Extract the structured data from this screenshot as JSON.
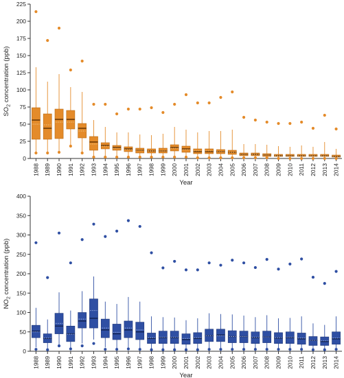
{
  "chart_data": [
    {
      "type": "box",
      "title": "",
      "xlabel": "Year",
      "ylabel_main": "SO",
      "ylabel_sub": "2",
      "ylabel_rest": " concentration (ppb)",
      "ylim": [
        0,
        225
      ],
      "yticks": [
        0,
        25,
        50,
        75,
        100,
        125,
        150,
        175,
        200,
        225
      ],
      "box_color": "#e48b2a",
      "box_edge": "#b86a14",
      "median_color": "#5a2d00",
      "mean_color": "#f2c88a",
      "categories": [
        "1988",
        "1989",
        "1990",
        "1991",
        "1992",
        "1993",
        "1994",
        "1995",
        "1996",
        "1997",
        "1998",
        "1999",
        "2000",
        "2001",
        "2002",
        "2003",
        "2004",
        "2005",
        "2006",
        "2007",
        "2008",
        "2009",
        "2010",
        "2011",
        "2012",
        "2013",
        "2014"
      ],
      "boxes": [
        {
          "q1": 28,
          "median": 56,
          "mean": 50,
          "q3": 74,
          "whisker_low": 9,
          "whisker_high": 133,
          "outliers": [
            8,
            214
          ]
        },
        {
          "q1": 28,
          "median": 44,
          "mean": 49,
          "q3": 65,
          "whisker_low": 9,
          "whisker_high": 112,
          "outliers": [
            8,
            172
          ]
        },
        {
          "q1": 29,
          "median": 57,
          "mean": 53,
          "q3": 72,
          "whisker_low": 10,
          "whisker_high": 123,
          "outliers": [
            9,
            190
          ]
        },
        {
          "q1": 43,
          "median": 57,
          "mean": 53,
          "q3": 70,
          "whisker_low": 20,
          "whisker_high": 104,
          "outliers": [
            18,
            129
          ]
        },
        {
          "q1": 30,
          "median": 44,
          "mean": 40,
          "q3": 51,
          "whisker_low": 10,
          "whisker_high": 97,
          "outliers": [
            8,
            142
          ]
        },
        {
          "q1": 12,
          "median": 24,
          "mean": 21,
          "q3": 32,
          "whisker_low": 3,
          "whisker_high": 56,
          "outliers": [
            2,
            79
          ]
        },
        {
          "q1": 14,
          "median": 19,
          "mean": 18,
          "q3": 23,
          "whisker_low": 4,
          "whisker_high": 46,
          "outliers": [
            2,
            79
          ]
        },
        {
          "q1": 12,
          "median": 16,
          "mean": 15,
          "q3": 19,
          "whisker_low": 4,
          "whisker_high": 38,
          "outliers": [
            2,
            65
          ]
        },
        {
          "q1": 10,
          "median": 14,
          "mean": 13,
          "q3": 17,
          "whisker_low": 3,
          "whisker_high": 38,
          "outliers": [
            2,
            72
          ]
        },
        {
          "q1": 8,
          "median": 12,
          "mean": 12,
          "q3": 15,
          "whisker_low": 3,
          "whisker_high": 35,
          "outliers": [
            2,
            72
          ]
        },
        {
          "q1": 8,
          "median": 11,
          "mean": 11,
          "q3": 14,
          "whisker_low": 3,
          "whisker_high": 34,
          "outliers": [
            2,
            74
          ]
        },
        {
          "q1": 8,
          "median": 11,
          "mean": 11,
          "q3": 15,
          "whisker_low": 3,
          "whisker_high": 36,
          "outliers": [
            2,
            67
          ]
        },
        {
          "q1": 11,
          "median": 16,
          "mean": 15,
          "q3": 20,
          "whisker_low": 3,
          "whisker_high": 46,
          "outliers": [
            2,
            79
          ]
        },
        {
          "q1": 9,
          "median": 14,
          "mean": 13,
          "q3": 18,
          "whisker_low": 3,
          "whisker_high": 42,
          "outliers": [
            2,
            93
          ]
        },
        {
          "q1": 7,
          "median": 10,
          "mean": 11,
          "q3": 14,
          "whisker_low": 2,
          "whisker_high": 38,
          "outliers": [
            1,
            81
          ]
        },
        {
          "q1": 7,
          "median": 10,
          "mean": 11,
          "q3": 14,
          "whisker_low": 2,
          "whisker_high": 40,
          "outliers": [
            1,
            81
          ]
        },
        {
          "q1": 7,
          "median": 10,
          "mean": 10,
          "q3": 13,
          "whisker_low": 2,
          "whisker_high": 40,
          "outliers": [
            1,
            89
          ]
        },
        {
          "q1": 6,
          "median": 9,
          "mean": 9,
          "q3": 12,
          "whisker_low": 2,
          "whisker_high": 42,
          "outliers": [
            1,
            97
          ]
        },
        {
          "q1": 4,
          "median": 6,
          "mean": 6,
          "q3": 8,
          "whisker_low": 1,
          "whisker_high": 21,
          "outliers": [
            1,
            60
          ]
        },
        {
          "q1": 4,
          "median": 6,
          "mean": 6,
          "q3": 8,
          "whisker_low": 1,
          "whisker_high": 21,
          "outliers": [
            1,
            56
          ]
        },
        {
          "q1": 3,
          "median": 5,
          "mean": 5,
          "q3": 7,
          "whisker_low": 1,
          "whisker_high": 20,
          "outliers": [
            1,
            53
          ]
        },
        {
          "q1": 3,
          "median": 4,
          "mean": 4,
          "q3": 6,
          "whisker_low": 1,
          "whisker_high": 18,
          "outliers": [
            0,
            51
          ]
        },
        {
          "q1": 3,
          "median": 4,
          "mean": 4,
          "q3": 6,
          "whisker_low": 1,
          "whisker_high": 17,
          "outliers": [
            0,
            51
          ]
        },
        {
          "q1": 3,
          "median": 4,
          "mean": 4,
          "q3": 6,
          "whisker_low": 1,
          "whisker_high": 19,
          "outliers": [
            0,
            53
          ]
        },
        {
          "q1": 3,
          "median": 4,
          "mean": 4,
          "q3": 6,
          "whisker_low": 1,
          "whisker_high": 17,
          "outliers": [
            0,
            44
          ]
        },
        {
          "q1": 3,
          "median": 4,
          "mean": 4,
          "q3": 6,
          "whisker_low": 1,
          "whisker_high": 24,
          "outliers": [
            0,
            63
          ]
        },
        {
          "q1": 2,
          "median": 3,
          "mean": 3,
          "q3": 5,
          "whisker_low": 1,
          "whisker_high": 14,
          "outliers": [
            0,
            43
          ]
        }
      ]
    },
    {
      "type": "box",
      "title": "",
      "xlabel": "Year",
      "ylabel_main": "NO",
      "ylabel_sub": "2",
      "ylabel_rest": " concentration (ppb)",
      "ylim": [
        0,
        400
      ],
      "yticks": [
        0,
        50,
        100,
        150,
        200,
        250,
        300,
        350,
        400
      ],
      "box_color": "#2f4fa3",
      "box_edge": "#1c3578",
      "median_color": "#0f1f4d",
      "mean_color": "#9fb3e6",
      "categories": [
        "1988",
        "1989",
        "1990",
        "1991",
        "1992",
        "1993",
        "1994",
        "1995",
        "1996",
        "1997",
        "1998",
        "1999",
        "2000",
        "2001",
        "2002",
        "2003",
        "2004",
        "2005",
        "2006",
        "2007",
        "2008",
        "2009",
        "2010",
        "2011",
        "2012",
        "2013",
        "2014"
      ],
      "boxes": [
        {
          "q1": 35,
          "median": 52,
          "mean": 50,
          "q3": 67,
          "whisker_low": 10,
          "whisker_high": 112,
          "outliers": [
            5,
            280
          ]
        },
        {
          "q1": 22,
          "median": 33,
          "mean": 34,
          "q3": 45,
          "whisker_low": 8,
          "whisker_high": 82,
          "outliers": [
            4,
            190
          ]
        },
        {
          "q1": 45,
          "median": 65,
          "mean": 72,
          "q3": 98,
          "whisker_low": 15,
          "whisker_high": 152,
          "outliers": [
            14,
            305
          ]
        },
        {
          "q1": 25,
          "median": 45,
          "mean": 44,
          "q3": 65,
          "whisker_low": 8,
          "whisker_high": 105,
          "outliers": [
            6,
            228
          ]
        },
        {
          "q1": 60,
          "median": 78,
          "mean": 83,
          "q3": 100,
          "whisker_low": 20,
          "whisker_high": 155,
          "outliers": [
            14,
            288
          ]
        },
        {
          "q1": 60,
          "median": 85,
          "mean": 105,
          "q3": 135,
          "whisker_low": 30,
          "whisker_high": 193,
          "outliers": [
            20,
            328
          ]
        },
        {
          "q1": 35,
          "median": 55,
          "mean": 60,
          "q3": 83,
          "whisker_low": 10,
          "whisker_high": 128,
          "outliers": [
            5,
            296
          ]
        },
        {
          "q1": 30,
          "median": 45,
          "mean": 49,
          "q3": 70,
          "whisker_low": 8,
          "whisker_high": 122,
          "outliers": [
            5,
            310
          ]
        },
        {
          "q1": 35,
          "median": 55,
          "mean": 60,
          "q3": 78,
          "whisker_low": 8,
          "whisker_high": 140,
          "outliers": [
            6,
            337
          ]
        },
        {
          "q1": 30,
          "median": 50,
          "mean": 55,
          "q3": 75,
          "whisker_low": 8,
          "whisker_high": 128,
          "outliers": [
            5,
            322
          ]
        },
        {
          "q1": 20,
          "median": 33,
          "mean": 35,
          "q3": 47,
          "whisker_low": 5,
          "whisker_high": 90,
          "outliers": [
            4,
            254
          ]
        },
        {
          "q1": 20,
          "median": 35,
          "mean": 36,
          "q3": 52,
          "whisker_low": 5,
          "whisker_high": 88,
          "outliers": [
            4,
            215
          ]
        },
        {
          "q1": 20,
          "median": 35,
          "mean": 36,
          "q3": 52,
          "whisker_low": 5,
          "whisker_high": 87,
          "outliers": [
            4,
            232
          ]
        },
        {
          "q1": 18,
          "median": 30,
          "mean": 33,
          "q3": 45,
          "whisker_low": 5,
          "whisker_high": 80,
          "outliers": [
            4,
            210
          ]
        },
        {
          "q1": 20,
          "median": 33,
          "mean": 35,
          "q3": 48,
          "whisker_low": 5,
          "whisker_high": 85,
          "outliers": [
            4,
            210
          ]
        },
        {
          "q1": 25,
          "median": 40,
          "mean": 40,
          "q3": 57,
          "whisker_low": 6,
          "whisker_high": 98,
          "outliers": [
            5,
            228
          ]
        },
        {
          "q1": 25,
          "median": 42,
          "mean": 40,
          "q3": 57,
          "whisker_low": 6,
          "whisker_high": 96,
          "outliers": [
            5,
            222
          ]
        },
        {
          "q1": 22,
          "median": 38,
          "mean": 38,
          "q3": 53,
          "whisker_low": 6,
          "whisker_high": 95,
          "outliers": [
            5,
            235
          ]
        },
        {
          "q1": 22,
          "median": 38,
          "mean": 38,
          "q3": 52,
          "whisker_low": 6,
          "whisker_high": 92,
          "outliers": [
            5,
            228
          ]
        },
        {
          "q1": 20,
          "median": 35,
          "mean": 36,
          "q3": 50,
          "whisker_low": 6,
          "whisker_high": 88,
          "outliers": [
            5,
            216
          ]
        },
        {
          "q1": 22,
          "median": 37,
          "mean": 37,
          "q3": 52,
          "whisker_low": 6,
          "whisker_high": 93,
          "outliers": [
            5,
            237
          ]
        },
        {
          "q1": 20,
          "median": 34,
          "mean": 35,
          "q3": 48,
          "whisker_low": 6,
          "whisker_high": 85,
          "outliers": [
            5,
            212
          ]
        },
        {
          "q1": 20,
          "median": 35,
          "mean": 36,
          "q3": 50,
          "whisker_low": 6,
          "whisker_high": 86,
          "outliers": [
            5,
            225
          ]
        },
        {
          "q1": 18,
          "median": 32,
          "mean": 34,
          "q3": 47,
          "whisker_low": 6,
          "whisker_high": 90,
          "outliers": [
            5,
            238
          ]
        },
        {
          "q1": 15,
          "median": 28,
          "mean": 28,
          "q3": 38,
          "whisker_low": 5,
          "whisker_high": 72,
          "outliers": [
            4,
            191
          ]
        },
        {
          "q1": 15,
          "median": 25,
          "mean": 27,
          "q3": 37,
          "whisker_low": 5,
          "whisker_high": 68,
          "outliers": [
            4,
            175
          ]
        },
        {
          "q1": 18,
          "median": 32,
          "mean": 34,
          "q3": 50,
          "whisker_low": 6,
          "whisker_high": 90,
          "outliers": [
            5,
            206
          ]
        }
      ]
    }
  ]
}
